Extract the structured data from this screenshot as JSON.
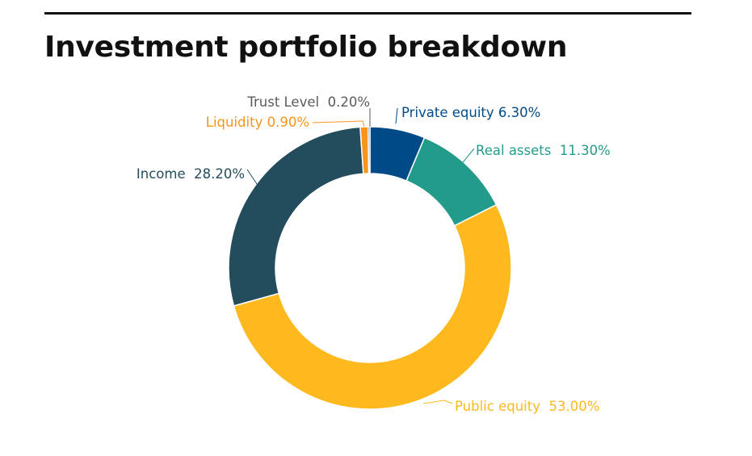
{
  "title": "Investment portfolio breakdown",
  "chart_data": {
    "type": "pie",
    "title": "Investment portfolio breakdown",
    "donut": true,
    "legend": "none",
    "slices": [
      {
        "name": "Private equity",
        "value": 6.3,
        "label": "Private equity 6.30%",
        "color": "#004b87"
      },
      {
        "name": "Real assets",
        "value": 11.3,
        "label": "Real assets  11.30%",
        "color": "#239b8b"
      },
      {
        "name": "Public equity",
        "value": 53.0,
        "label": "Public equity  53.00%",
        "color": "#fdb91e"
      },
      {
        "name": "Income",
        "value": 28.2,
        "label": "Income  28.20%",
        "color": "#234d5c"
      },
      {
        "name": "Liquidity",
        "value": 0.9,
        "label": "Liquidity 0.90%",
        "color": "#f7941d"
      },
      {
        "name": "Trust Level",
        "value": 0.2,
        "label": "Trust Level  0.20%",
        "color": "#5a5a5a"
      }
    ]
  }
}
